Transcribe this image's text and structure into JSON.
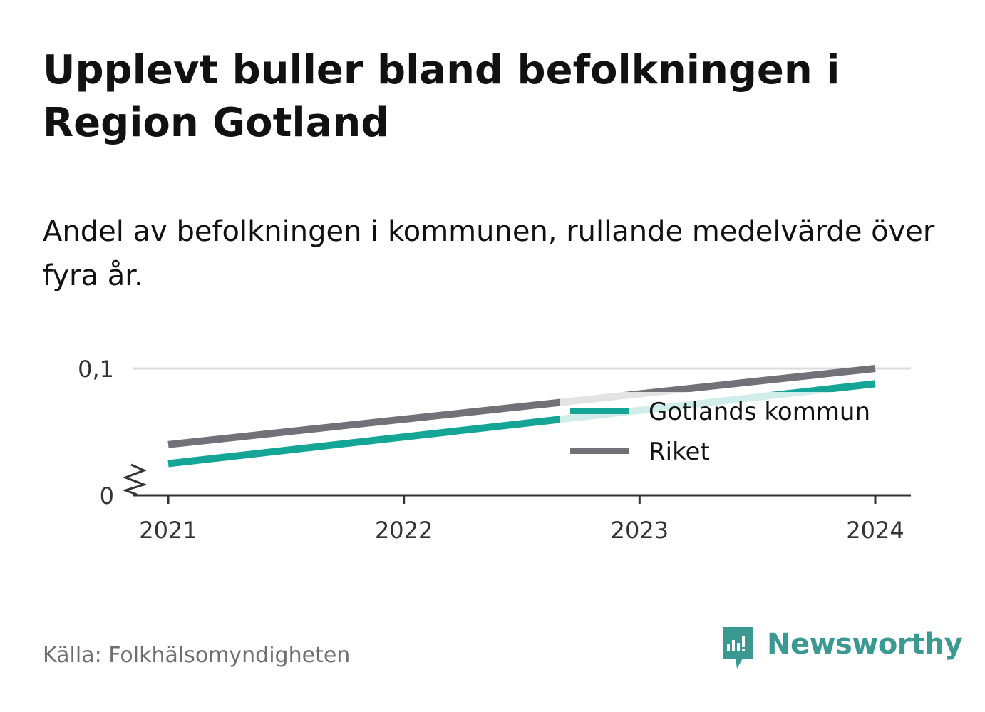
{
  "title": "Upplevt buller bland befolkningen i Region Gotland",
  "subtitle": "Andel av befolkningen i kommunen, rullande medelvärde över fyra år.",
  "source": "Källa: Folkhälsomyndigheten",
  "brand": {
    "name": "Newsworthy",
    "icon": "newsworthy-logo-icon",
    "color": "#3a9a92"
  },
  "chart_data": {
    "type": "line",
    "title": "",
    "xlabel": "",
    "ylabel": "",
    "x": [
      2021,
      2022,
      2023,
      2024
    ],
    "x_tick_labels": [
      "2021",
      "2022",
      "2023",
      "2024"
    ],
    "y_ticks": [
      0,
      0.1
    ],
    "y_tick_labels": [
      "0",
      "0,1"
    ],
    "ylim": [
      0,
      0.1
    ],
    "y_axis_break": true,
    "grid": true,
    "legend_position": "right, inside plot",
    "series": [
      {
        "name": "Gotlands kommun",
        "color": "#14a596",
        "values": [
          0.025,
          0.046,
          0.067,
          0.088
        ]
      },
      {
        "name": "Riket",
        "color": "#727178",
        "values": [
          0.04,
          0.06,
          0.08,
          0.1
        ]
      }
    ]
  }
}
